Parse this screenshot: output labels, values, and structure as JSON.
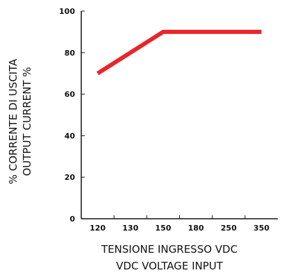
{
  "chart_data": {
    "type": "line",
    "categories": [
      "120",
      "130",
      "150",
      "180",
      "250",
      "350"
    ],
    "series": [
      {
        "values": [
          70,
          80,
          90,
          90,
          90,
          90
        ]
      }
    ],
    "ylim": [
      0,
      100
    ],
    "yticks": [
      "0",
      "20",
      "40",
      "60",
      "80",
      "100"
    ],
    "ylabel_lines": [
      "% CORRENTE DI USCITA",
      "OUTPUT CURRENT %"
    ],
    "xlabel_lines": [
      "TENSIONE INGRESSO VDC",
      "VDC VOLTAGE INPUT"
    ],
    "grid": false,
    "colors": {
      "series": "#e8262a",
      "axis": "#111111"
    }
  }
}
